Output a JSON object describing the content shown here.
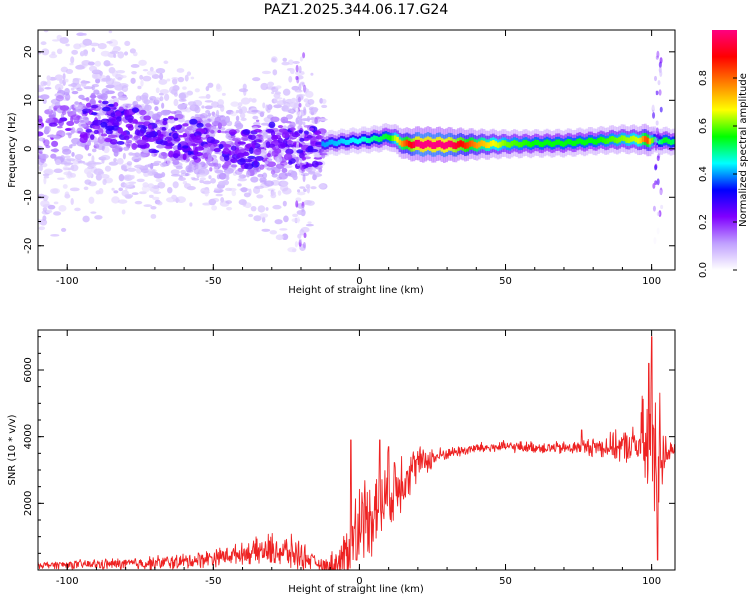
{
  "title": "PAZ1.2025.344.06.17.G24",
  "colors": {
    "snr_line": "#ee2222",
    "axis": "#000000",
    "ridge": "#ff2020"
  },
  "chart_data": [
    {
      "id": "spectrogram",
      "type": "heatmap",
      "xlabel": "Height of straight line (km)",
      "ylabel": "Frequency (Hz)",
      "xlim": [
        -110,
        108
      ],
      "ylim": [
        -25,
        24.5
      ],
      "xticks": [
        -100,
        -50,
        0,
        50,
        100
      ],
      "yticks": [
        -20,
        -10,
        0,
        10,
        20
      ],
      "grid": false,
      "colorbar": {
        "label": "Normalized spectral amplitude",
        "range": [
          0,
          1
        ],
        "ticks": [
          "0.0",
          "0.2",
          "0.4",
          "0.6",
          "0.8"
        ],
        "colormap": [
          "#ffffff",
          "#c0a0ff",
          "#8000ff",
          "#0000ff",
          "#00ffff",
          "#00ff00",
          "#ffff00",
          "#ff8000",
          "#ff0000",
          "#ff0080"
        ]
      },
      "ridge_frequency_hz": [
        [
          -110,
          3
        ],
        [
          -100,
          5
        ],
        [
          -90,
          6
        ],
        [
          -80,
          5
        ],
        [
          -70,
          3
        ],
        [
          -60,
          2
        ],
        [
          -50,
          1
        ],
        [
          -40,
          0
        ],
        [
          -30,
          1
        ],
        [
          -20,
          0
        ],
        [
          -13,
          1
        ],
        [
          -5,
          1.5
        ],
        [
          5,
          2
        ],
        [
          10,
          2.5
        ],
        [
          15,
          1
        ],
        [
          30,
          0.8
        ],
        [
          50,
          1
        ],
        [
          70,
          1.2
        ],
        [
          90,
          2
        ],
        [
          108,
          1.5
        ]
      ],
      "ridge_amplitude": [
        [
          -110,
          0.2
        ],
        [
          -60,
          0.25
        ],
        [
          -14,
          0.3
        ],
        [
          -13,
          0.35
        ],
        [
          0,
          0.4
        ],
        [
          10,
          0.5
        ],
        [
          15,
          0.75
        ],
        [
          20,
          0.98
        ],
        [
          30,
          0.95
        ],
        [
          40,
          0.7
        ],
        [
          50,
          0.55
        ],
        [
          60,
          0.5
        ],
        [
          80,
          0.5
        ],
        [
          95,
          0.6
        ],
        [
          98,
          0.8
        ],
        [
          101,
          0.4
        ],
        [
          104,
          0.5
        ],
        [
          108,
          0.45
        ]
      ],
      "left_scatter_spread_hz": [
        [
          -110,
          25
        ],
        [
          -90,
          22
        ],
        [
          -60,
          15
        ],
        [
          -40,
          14
        ],
        [
          -22,
          25
        ],
        [
          -17,
          20
        ],
        [
          -14,
          10
        ]
      ]
    },
    {
      "id": "snr",
      "type": "line",
      "xlabel": "Height of straight line (km)",
      "ylabel": "SNR (10 * v/v)",
      "xlim": [
        -110,
        108
      ],
      "ylim": [
        0,
        7200
      ],
      "xticks": [
        -100,
        -50,
        0,
        50,
        100
      ],
      "yticks": [
        2000,
        4000,
        6000
      ],
      "grid": false,
      "envelope": [
        [
          -110,
          150
        ],
        [
          -80,
          180
        ],
        [
          -60,
          250
        ],
        [
          -40,
          500
        ],
        [
          -30,
          600
        ],
        [
          -20,
          450
        ],
        [
          -12,
          80
        ],
        [
          -8,
          150
        ],
        [
          -5,
          400
        ],
        [
          0,
          1500
        ],
        [
          5,
          1800
        ],
        [
          10,
          2200
        ],
        [
          15,
          2800
        ],
        [
          20,
          3200
        ],
        [
          30,
          3500
        ],
        [
          40,
          3650
        ],
        [
          50,
          3700
        ],
        [
          60,
          3680
        ],
        [
          70,
          3650
        ],
        [
          80,
          3700
        ],
        [
          90,
          3700
        ],
        [
          95,
          3750
        ],
        [
          100,
          3700
        ],
        [
          105,
          3600
        ],
        [
          108,
          3550
        ]
      ],
      "noise_amplitude": [
        [
          -110,
          120
        ],
        [
          -40,
          350
        ],
        [
          -30,
          600
        ],
        [
          -21,
          600
        ],
        [
          -14,
          150
        ],
        [
          -6,
          800
        ],
        [
          -2,
          1400
        ],
        [
          5,
          1500
        ],
        [
          12,
          1400
        ],
        [
          20,
          600
        ],
        [
          30,
          200
        ],
        [
          60,
          200
        ],
        [
          75,
          250
        ],
        [
          85,
          450
        ],
        [
          95,
          700
        ],
        [
          97,
          1800
        ],
        [
          101,
          3000
        ],
        [
          104,
          1500
        ],
        [
          106,
          400
        ],
        [
          108,
          200
        ]
      ],
      "peaks": [
        [
          -3,
          3900
        ],
        [
          -1,
          300
        ],
        [
          7,
          3900
        ],
        [
          10,
          3700
        ],
        [
          76,
          4200
        ],
        [
          99,
          6200
        ],
        [
          100,
          7000
        ],
        [
          102,
          300
        ]
      ]
    }
  ]
}
